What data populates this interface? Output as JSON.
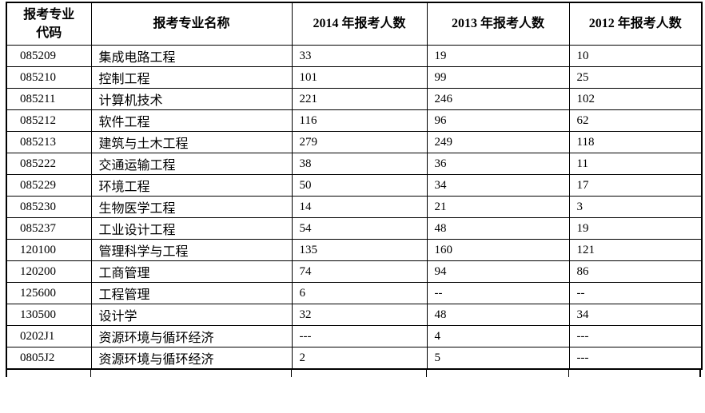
{
  "table": {
    "headers": [
      "报考专业\n代码",
      "报考专业名称",
      "2014 年报考人数",
      "2013 年报考人数",
      "2012 年报考人数"
    ],
    "rows": [
      {
        "code": "085209",
        "name": "集成电路工程",
        "y2014": "33",
        "y2013": "19",
        "y2012": "10"
      },
      {
        "code": "085210",
        "name": "控制工程",
        "y2014": "101",
        "y2013": "99",
        "y2012": "25"
      },
      {
        "code": "085211",
        "name": "计算机技术",
        "y2014": "221",
        "y2013": "246",
        "y2012": "102"
      },
      {
        "code": "085212",
        "name": "软件工程",
        "y2014": "116",
        "y2013": "96",
        "y2012": "62"
      },
      {
        "code": "085213",
        "name": "建筑与土木工程",
        "y2014": "279",
        "y2013": "249",
        "y2012": "118"
      },
      {
        "code": "085222",
        "name": "交通运输工程",
        "y2014": "38",
        "y2013": "36",
        "y2012": "11"
      },
      {
        "code": "085229",
        "name": "环境工程",
        "y2014": "50",
        "y2013": "34",
        "y2012": "17"
      },
      {
        "code": "085230",
        "name": "生物医学工程",
        "y2014": "14",
        "y2013": "21",
        "y2012": "3"
      },
      {
        "code": "085237",
        "name": "工业设计工程",
        "y2014": "54",
        "y2013": "48",
        "y2012": "19"
      },
      {
        "code": "120100",
        "name": "管理科学与工程",
        "y2014": "135",
        "y2013": "160",
        "y2012": "121"
      },
      {
        "code": "120200",
        "name": "工商管理",
        "y2014": "74",
        "y2013": "94",
        "y2012": "86"
      },
      {
        "code": "125600",
        "name": "工程管理",
        "y2014": "6",
        "y2013": "--",
        "y2012": "--"
      },
      {
        "code": "130500",
        "name": "设计学",
        "y2014": "32",
        "y2013": "48",
        "y2012": "34"
      },
      {
        "code": "0202J1",
        "name": "资源环境与循环经济",
        "y2014": "---",
        "y2013": "4",
        "y2012": "---"
      },
      {
        "code": "0805J2",
        "name": "资源环境与循环经济",
        "y2014": "2",
        "y2013": "5",
        "y2012": "---"
      }
    ],
    "border_color": "#000000",
    "text_color": "#000000",
    "background_color": "#ffffff"
  }
}
